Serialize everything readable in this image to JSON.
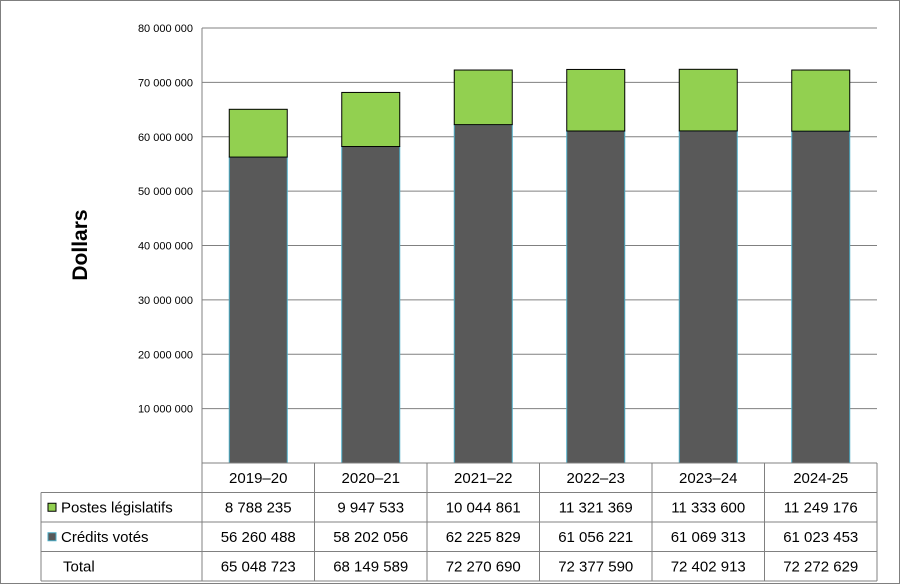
{
  "chart_data": {
    "type": "bar",
    "stacked": true,
    "categories": [
      "2019–20",
      "2020–21",
      "2021–22",
      "2022–23",
      "2023–24",
      "2024-25"
    ],
    "series": [
      {
        "name": "Crédits votés",
        "values": [
          56260488,
          58202056,
          62225829,
          61056221,
          61069313,
          61023453
        ],
        "color": "#595959",
        "edge": "#4bacc6",
        "labels": [
          "56 260 488",
          "58 202 056",
          "62 225 829",
          "61 056 221",
          "61 069 313",
          "61 023 453"
        ]
      },
      {
        "name": "Postes législatifs",
        "values": [
          8788235,
          9947533,
          10044861,
          11321369,
          11333600,
          11249176
        ],
        "color": "#92d050",
        "edge": "#000000",
        "labels": [
          "8 788 235",
          "9 947 533",
          "10 044 861",
          "11 321 369",
          "11 333 600",
          "11 249 176"
        ]
      }
    ],
    "totals": {
      "name": "Total",
      "values": [
        65048723,
        68149589,
        72270690,
        72377590,
        72402913,
        72272629
      ],
      "labels": [
        "65 048 723",
        "68 149 589",
        "72 270 690",
        "72 377 590",
        "72 402 913",
        "72 272 629"
      ]
    },
    "ylabel": "Dollars",
    "ylim": [
      0,
      80000000
    ],
    "yticks": [
      0,
      10000000,
      20000000,
      30000000,
      40000000,
      50000000,
      60000000,
      70000000,
      80000000
    ],
    "ytick_labels": [
      "",
      "10 000 000",
      "20 000 000",
      "30 000 000",
      "40 000 000",
      "50 000 000",
      "60 000 000",
      "70 000 000",
      "80 000 000"
    ],
    "grid": true,
    "legend": "data-table"
  }
}
